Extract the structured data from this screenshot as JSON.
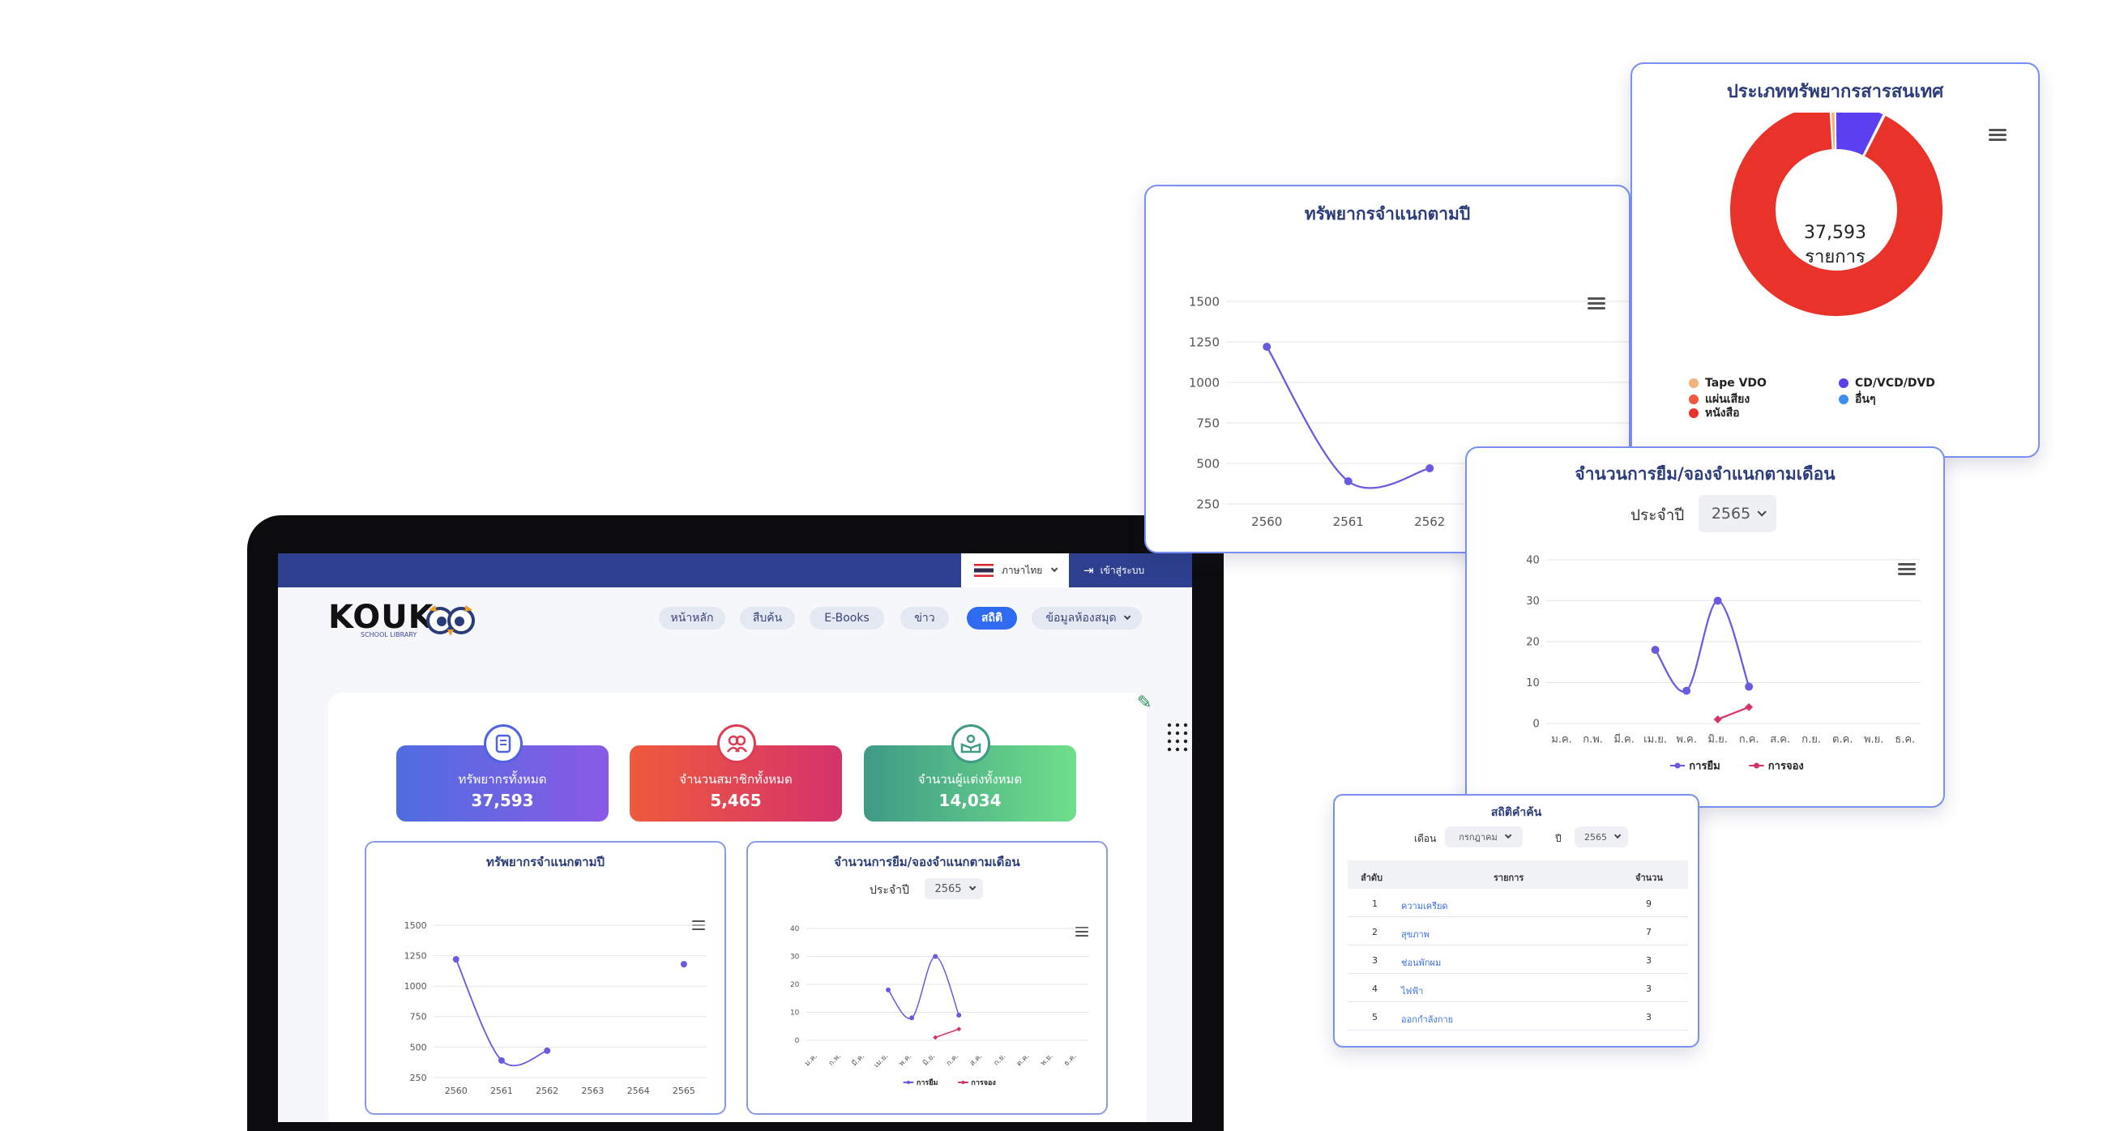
{
  "nav": {
    "language": "ภาษาไทย",
    "login": "เข้าสู่ระบบ",
    "logo": {
      "brand": "KOUK",
      "sub": "SCHOOL LIBRARY"
    },
    "items": [
      {
        "label": "หน้าหลัก"
      },
      {
        "label": "สืบค้น"
      },
      {
        "label": "E-Books"
      },
      {
        "label": "ข่าว"
      },
      {
        "label": "สถิติ"
      },
      {
        "label": "ข้อมูลห้องสมุด"
      }
    ],
    "active_index": 4
  },
  "stats": [
    {
      "label": "ทรัพยากรทั้งหมด",
      "value": "37,593",
      "icon": "book-icon"
    },
    {
      "label": "จำนวนสมาชิกทั้งหมด",
      "value": "5,465",
      "icon": "users-icon"
    },
    {
      "label": "จำนวนผู้แต่งทั้งหมด",
      "value": "14,034",
      "icon": "reader-icon"
    }
  ],
  "resource_chart": {
    "title": "ทรัพยากรจำแนกตามปี"
  },
  "loan_chart": {
    "title": "จำนวนการยืม/จองจำแนกตามเดือน",
    "year_label": "ประจำปี",
    "year_value": "2565"
  },
  "donut": {
    "title": "ประเภททรัพยากรสารสนเทศ",
    "center_value": "37,593",
    "center_label": "รายการ",
    "legend": [
      {
        "name": "Tape VDO",
        "color": "#f0b37a"
      },
      {
        "name": "CD/VCD/DVD",
        "color": "#5b3ff0"
      },
      {
        "name": "แผ่นเสียง",
        "color": "#ef5a3c"
      },
      {
        "name": "อื่นๆ",
        "color": "#3c8df0"
      },
      {
        "name": "หนังสือ",
        "color": "#e8322a"
      }
    ]
  },
  "search_stats": {
    "title": "สถิติคำค้น",
    "month_label": "เดือน",
    "month_value": "กรกฎาคม",
    "year_label": "ปี",
    "year_value": "2565",
    "headers": {
      "rank": "ลำดับ",
      "item": "รายการ",
      "count": "จำนวน"
    },
    "rows": [
      {
        "rank": "1",
        "item": "ความเครียด",
        "count": "9"
      },
      {
        "rank": "2",
        "item": "สุขภาพ",
        "count": "7"
      },
      {
        "rank": "3",
        "item": "ช่อนพักผม",
        "count": "3"
      },
      {
        "rank": "4",
        "item": "ไฟฟ้า",
        "count": "3"
      },
      {
        "rank": "5",
        "item": "ออกกำลังกาย",
        "count": "3"
      }
    ]
  },
  "chart_data": [
    {
      "type": "line",
      "title": "ทรัพยากรจำแนกตามปี",
      "categories": [
        "2560",
        "2561",
        "2562",
        "2563",
        "2564",
        "2565"
      ],
      "series": [
        {
          "values": [
            1220,
            390,
            470,
            null,
            null,
            1180
          ],
          "color": "#6a5ae0"
        }
      ],
      "yticks": [
        250,
        500,
        750,
        1000,
        1250,
        1500
      ],
      "ylim": [
        250,
        1500
      ],
      "grid": true
    },
    {
      "type": "line",
      "title": "จำนวนการยืม/จองจำแนกตามเดือน",
      "categories": [
        "ม.ค.",
        "ก.พ.",
        "มี.ค.",
        "เม.ย.",
        "พ.ค.",
        "มิ.ย.",
        "ก.ค.",
        "ส.ค.",
        "ก.ย.",
        "ต.ค.",
        "พ.ย.",
        "ธ.ค."
      ],
      "series": [
        {
          "name": "การยืม",
          "values": [
            null,
            null,
            null,
            18,
            8,
            30,
            9,
            null,
            null,
            null,
            null,
            null
          ],
          "color": "#6a5ae0"
        },
        {
          "name": "การจอง",
          "values": [
            null,
            null,
            null,
            null,
            null,
            1,
            4,
            null,
            null,
            null,
            null,
            null
          ],
          "color": "#d6336c"
        }
      ],
      "yticks": [
        0,
        10,
        20,
        30,
        40
      ],
      "ylim": [
        0,
        40
      ],
      "grid": true,
      "legend": "bottom"
    },
    {
      "type": "pie",
      "title": "ประเภททรัพยากรสารสนเทศ",
      "categories": [
        "Tape VDO",
        "CD/VCD/DVD",
        "แผ่นเสียง",
        "อื่นๆ",
        "หนังสือ"
      ],
      "values": [
        0.8,
        7.5,
        0.1,
        0.1,
        91.5
      ],
      "legend": "bottom"
    }
  ]
}
